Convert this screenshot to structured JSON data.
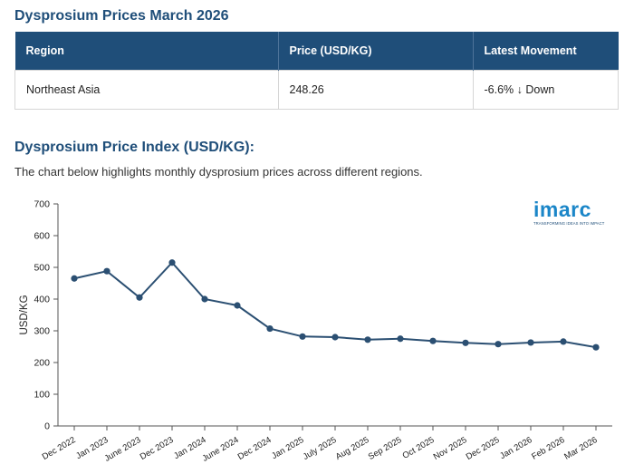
{
  "header": {
    "title": "Dysprosium Prices March 2026"
  },
  "price_table": {
    "columns": [
      "Region",
      "Price (USD/KG)",
      "Latest Movement"
    ],
    "rows": [
      {
        "region": "Northeast Asia",
        "price": "248.26",
        "movement": "-6.6% ↓ Down"
      }
    ]
  },
  "section": {
    "title": "Dysprosium Price Index (USD/KG):",
    "description": "The chart below highlights monthly dysprosium prices across different regions."
  },
  "logo": {
    "word": "imarc",
    "tagline": "TRANSFORMING IDEAS INTO IMPACT"
  },
  "colors": {
    "header_bg": "#1f4e79",
    "line": "#2b4f72",
    "logo": "#1b86c8"
  },
  "chart_data": {
    "type": "line",
    "title": "Dysprosium Price Index (USD/KG)",
    "xlabel": "",
    "ylabel": "USD/KG",
    "ylim": [
      0,
      700
    ],
    "yticks": [
      0,
      100,
      200,
      300,
      400,
      500,
      600,
      700
    ],
    "grid": false,
    "categories": [
      "Dec 2022",
      "Jan 2023",
      "June 2023",
      "Dec 2023",
      "Jan 2024",
      "June 2024",
      "Dec 2024",
      "Jan 2025",
      "July 2025",
      "Aug 2025",
      "Sep 2025",
      "Oct 2025",
      "Nov 2025",
      "Dec 2025",
      "Jan 2026",
      "Feb 2026",
      "Mar 2026"
    ],
    "series": [
      {
        "name": "Northeast Asia",
        "values": [
          465,
          488,
          405,
          515,
          400,
          380,
          307,
          282,
          280,
          272,
          275,
          268,
          262,
          258,
          263,
          266,
          248
        ]
      }
    ]
  }
}
